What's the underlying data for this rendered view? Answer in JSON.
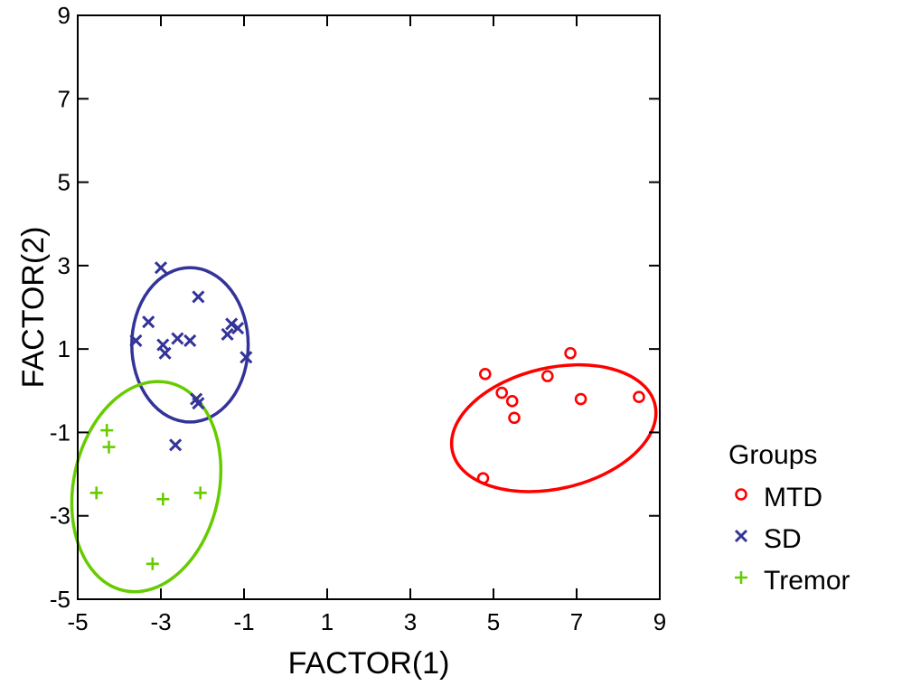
{
  "chart_data": {
    "type": "scatter",
    "xlabel": "FACTOR(1)",
    "ylabel": "FACTOR(2)",
    "xlim": [
      -5,
      9
    ],
    "ylim": [
      -5,
      9
    ],
    "xticks": [
      -5,
      -3,
      -1,
      1,
      3,
      5,
      7,
      9
    ],
    "yticks": [
      -5,
      -3,
      -1,
      1,
      3,
      5,
      7,
      9
    ],
    "xtick_labels": [
      "-5",
      "-3",
      "-1",
      "1",
      "3",
      "5",
      "7",
      "9"
    ],
    "ytick_labels": [
      "-5",
      "-3",
      "-1",
      "1",
      "3",
      "5",
      "7",
      "9"
    ],
    "grid": false,
    "legend": {
      "title": "Groups",
      "placement": "right-bottom"
    },
    "series": [
      {
        "name": "MTD",
        "marker": "circle",
        "color": "#ff0000",
        "points": [
          [
            4.8,
            0.4
          ],
          [
            5.2,
            -0.05
          ],
          [
            5.45,
            -0.25
          ],
          [
            5.5,
            -0.65
          ],
          [
            6.3,
            0.35
          ],
          [
            6.85,
            0.9
          ],
          [
            7.1,
            -0.2
          ],
          [
            8.5,
            -0.15
          ],
          [
            4.75,
            -2.1
          ]
        ],
        "ellipse": {
          "center": [
            6.45,
            -0.9
          ],
          "rx": 2.5,
          "ry": 1.45,
          "angle_deg": -13
        }
      },
      {
        "name": "SD",
        "marker": "x",
        "color": "#333399",
        "points": [
          [
            -3.0,
            2.95
          ],
          [
            -3.3,
            1.65
          ],
          [
            -3.6,
            1.2
          ],
          [
            -2.95,
            1.1
          ],
          [
            -2.9,
            0.9
          ],
          [
            -2.6,
            1.25
          ],
          [
            -2.3,
            1.2
          ],
          [
            -2.1,
            2.25
          ],
          [
            -1.4,
            1.35
          ],
          [
            -1.3,
            1.6
          ],
          [
            -1.15,
            1.5
          ],
          [
            -0.95,
            0.8
          ],
          [
            -2.15,
            -0.2
          ],
          [
            -2.1,
            -0.3
          ],
          [
            -2.65,
            -1.3
          ]
        ],
        "ellipse": {
          "center": [
            -2.3,
            1.1
          ],
          "rx": 1.4,
          "ry": 1.85,
          "angle_deg": 0
        }
      },
      {
        "name": "Tremor",
        "marker": "plus",
        "color": "#66cc00",
        "points": [
          [
            -4.3,
            -0.95
          ],
          [
            -4.25,
            -1.35
          ],
          [
            -4.55,
            -2.45
          ],
          [
            -2.95,
            -2.6
          ],
          [
            -2.05,
            -2.45
          ],
          [
            -3.2,
            -4.15
          ]
        ],
        "ellipse": {
          "center": [
            -3.35,
            -2.3
          ],
          "rx": 1.75,
          "ry": 2.55,
          "angle_deg": 12
        }
      }
    ]
  }
}
